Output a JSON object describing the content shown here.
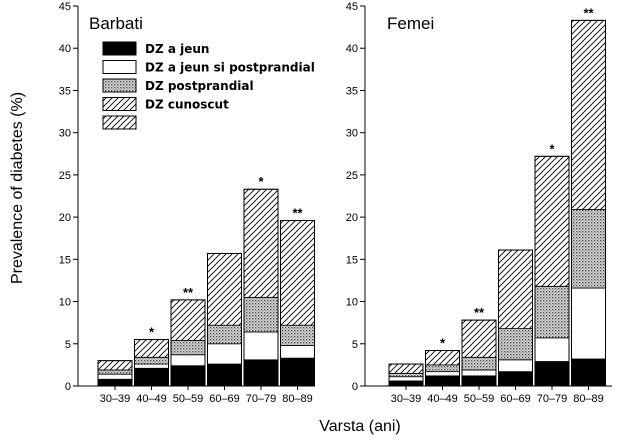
{
  "chart_data": {
    "type": "bar",
    "stacked": true,
    "ylabel": "Prevalence of diabetes (%)",
    "xlabel": "Varsta (ani)",
    "ylim": [
      0,
      45
    ],
    "yticks": [
      0,
      5,
      10,
      15,
      20,
      25,
      30,
      35,
      40,
      45
    ],
    "categories": [
      "30–39",
      "40–49",
      "50–59",
      "60–69",
      "70–79",
      "80–89"
    ],
    "legend": {
      "placement": "top-left",
      "entries": [
        {
          "label": "DZ a jeun",
          "pattern": "solid-black"
        },
        {
          "label": "DZ a jeun si postprandial",
          "pattern": "white"
        },
        {
          "label": "DZ postprandial",
          "pattern": "dotted"
        },
        {
          "label": "DZ cunoscut",
          "pattern": "hatched"
        },
        {
          "label": "",
          "pattern": "hatched"
        }
      ]
    },
    "segment_patterns": [
      "solid-black",
      "white",
      "dotted",
      "hatched"
    ],
    "panels": [
      {
        "title": "Barbati",
        "totals": [
          3.0,
          5.5,
          10.2,
          15.7,
          23.3,
          19.6
        ],
        "segments": [
          [
            0.8,
            0.6,
            0.5,
            1.1
          ],
          [
            2.1,
            0.5,
            0.8,
            2.1
          ],
          [
            2.4,
            1.3,
            1.7,
            4.8
          ],
          [
            2.6,
            2.4,
            2.2,
            8.5
          ],
          [
            3.1,
            3.3,
            4.1,
            12.8
          ],
          [
            3.3,
            1.5,
            2.4,
            12.4
          ]
        ],
        "stars": [
          "",
          "*",
          "**",
          "",
          "*",
          "**"
        ]
      },
      {
        "title": "Femei",
        "totals": [
          2.6,
          4.2,
          7.8,
          16.1,
          27.2,
          43.3
        ],
        "segments": [
          [
            0.6,
            0.5,
            0.4,
            1.1
          ],
          [
            1.2,
            0.5,
            0.8,
            1.7
          ],
          [
            1.2,
            0.7,
            1.5,
            4.4
          ],
          [
            1.7,
            1.4,
            3.7,
            9.3
          ],
          [
            2.9,
            2.8,
            6.1,
            15.4
          ],
          [
            3.2,
            8.4,
            9.3,
            22.4
          ]
        ],
        "stars": [
          "",
          "*",
          "**",
          "",
          "*",
          "**"
        ]
      }
    ]
  }
}
